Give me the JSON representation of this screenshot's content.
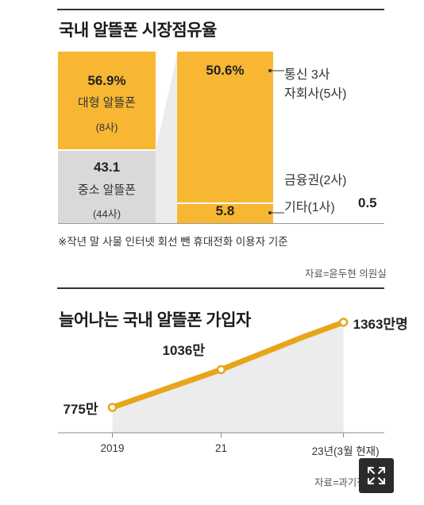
{
  "share": {
    "title": "국내 알뜰폰 시장점유율",
    "large": {
      "value": "56.9%",
      "label": "대형 알뜰폰",
      "count": "(8사)"
    },
    "small": {
      "value": "43.1",
      "label": "중소 알뜰폰",
      "count": "(44사)"
    },
    "telecom": {
      "value": "50.6%",
      "label1": "통신 3사",
      "label2": "자회사(5사)"
    },
    "finance": {
      "label": "금융권(2사)"
    },
    "other": {
      "value": "5.8",
      "label": "기타(1사)",
      "extra": "0.5"
    },
    "note": "※작년 말 사물 인터넷 회선 뺀 휴대전화 이용자 기준",
    "source": "자료=윤두현 의원실"
  },
  "colors": {
    "orange": "#f8b733",
    "gray": "#d9d9d9",
    "line": "#e7a51a",
    "area": "#ececec"
  },
  "subscriber": {
    "title": "늘어나는 국내 알뜰폰 가입자",
    "source": "자료=과기정통부"
  },
  "chart_data": [
    {
      "type": "bar",
      "title": "국내 알뜰폰 시장점유율",
      "series": [
        {
          "name": "대형 알뜰폰",
          "values": [
            56.9
          ]
        },
        {
          "name": "중소 알뜰폰",
          "values": [
            43.1
          ]
        }
      ],
      "breakdown": [
        {
          "name": "통신 3사 자회사(5사)",
          "value": 50.6
        },
        {
          "name": "금융권(2사)",
          "value": 5.8
        },
        {
          "name": "기타(1사)",
          "value": 0.5
        }
      ]
    },
    {
      "type": "area",
      "title": "늘어나는 국내 알뜰폰 가입자",
      "categories": [
        "2019",
        "21",
        "23년(3월 현재)"
      ],
      "x": [
        2019,
        2021,
        2023.25
      ],
      "values": [
        775,
        1036,
        1363
      ],
      "labels": [
        "775만",
        "1036만",
        "1363만명"
      ],
      "intermediate": [
        {
          "x": 2022.5,
          "y": 1260
        }
      ],
      "xlim": [
        2018,
        2024
      ],
      "ylim": [
        600,
        1450
      ],
      "grid": false
    }
  ]
}
